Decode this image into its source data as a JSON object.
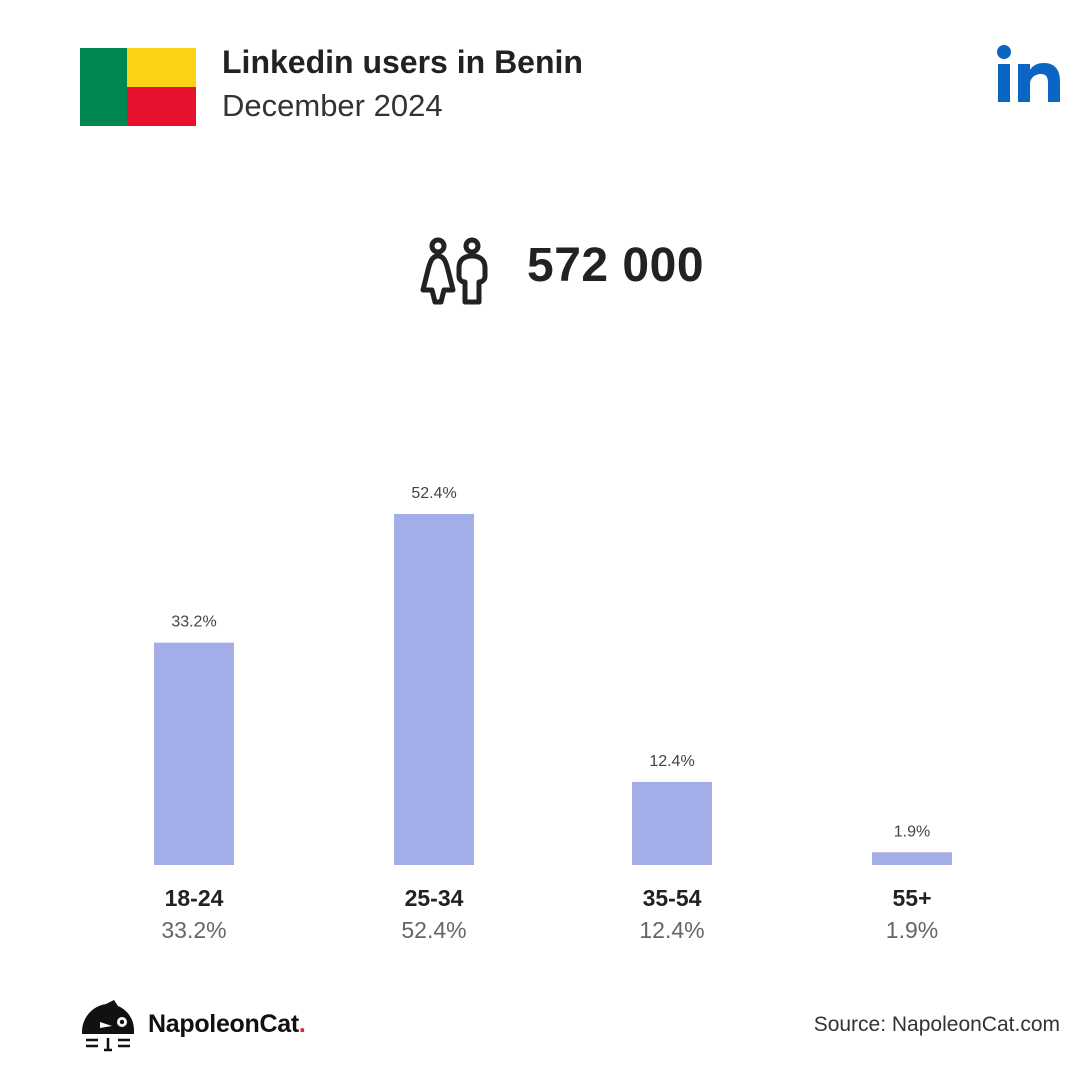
{
  "header": {
    "title": "Linkedin users in Benin",
    "subtitle": "December 2024"
  },
  "flag": {
    "green": "#008751",
    "yellow": "#FCD116",
    "red": "#E8112D"
  },
  "brand_colors": {
    "linkedin": "#0A66C2",
    "bar": "#A3AEE8"
  },
  "icons": {
    "people": "people-icon",
    "linkedin": "linkedin-logo-icon",
    "napoleoncat": "napoleoncat-logo-icon"
  },
  "total_users": "572 000",
  "chart_data": {
    "type": "bar",
    "categories": [
      "18-24",
      "25-34",
      "35-54",
      "55+"
    ],
    "values": [
      33.2,
      52.4,
      12.4,
      1.9
    ],
    "value_labels": [
      "33.2%",
      "52.4%",
      "12.4%",
      "1.9%"
    ],
    "title": "",
    "xlabel": "",
    "ylabel": "",
    "ylim": [
      0,
      52.4
    ],
    "grid": false
  },
  "footer": {
    "brand_name": "NapoleonCat",
    "brand_dot": ".",
    "source": "Source: NapoleonCat.com"
  }
}
